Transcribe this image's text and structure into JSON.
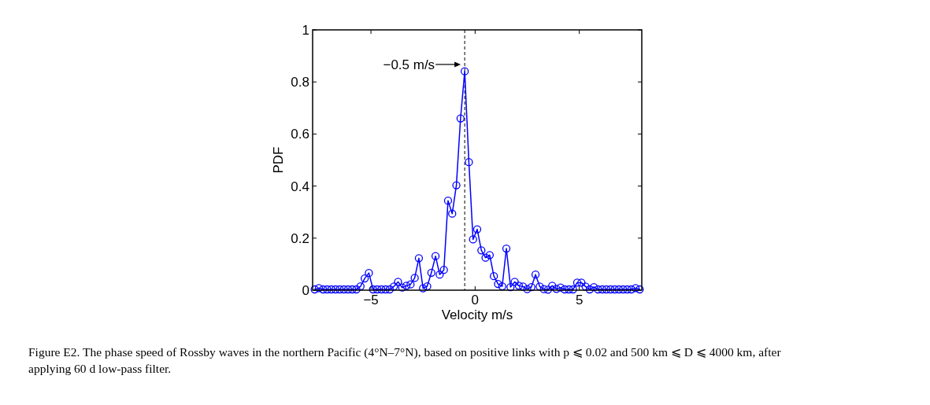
{
  "chart_data": {
    "type": "line",
    "xlabel": "Velocity m/s",
    "ylabel": "PDF",
    "x": [
      -7.7,
      -7.5,
      -7.3,
      -7.1,
      -6.9,
      -6.7,
      -6.5,
      -6.3,
      -6.1,
      -5.9,
      -5.7,
      -5.5,
      -5.3,
      -5.1,
      -4.9,
      -4.7,
      -4.5,
      -4.3,
      -4.1,
      -3.9,
      -3.7,
      -3.5,
      -3.3,
      -3.1,
      -2.9,
      -2.7,
      -2.5,
      -2.3,
      -2.1,
      -1.9,
      -1.7,
      -1.5,
      -1.3,
      -1.1,
      -0.9,
      -0.7,
      -0.5,
      -0.3,
      -0.1,
      0.1,
      0.3,
      0.5,
      0.7,
      0.9,
      1.1,
      1.3,
      1.5,
      1.7,
      1.9,
      2.1,
      2.3,
      2.5,
      2.7,
      2.9,
      3.1,
      3.3,
      3.5,
      3.7,
      3.9,
      4.1,
      4.3,
      4.5,
      4.7,
      4.9,
      5.1,
      5.3,
      5.5,
      5.7,
      5.9,
      6.1,
      6.3,
      6.5,
      6.7,
      6.9,
      7.1,
      7.3,
      7.5,
      7.7,
      7.9
    ],
    "series": [
      {
        "color": "#0000ff",
        "values": [
          0.003,
          0.008,
          0.003,
          0.003,
          0.003,
          0.003,
          0.003,
          0.003,
          0.003,
          0.003,
          0.003,
          0.015,
          0.045,
          0.066,
          0.003,
          0.003,
          0.003,
          0.003,
          0.003,
          0.014,
          0.032,
          0.01,
          0.017,
          0.022,
          0.047,
          0.123,
          0.007,
          0.015,
          0.067,
          0.131,
          0.06,
          0.078,
          0.344,
          0.294,
          0.403,
          0.66,
          0.841,
          0.492,
          0.195,
          0.234,
          0.153,
          0.125,
          0.135,
          0.054,
          0.024,
          0.015,
          0.16,
          0.012,
          0.032,
          0.017,
          0.014,
          0.004,
          0.012,
          0.06,
          0.014,
          0.004,
          0.002,
          0.017,
          0.005,
          0.01,
          0.003,
          0.003,
          0.003,
          0.029,
          0.029,
          0.014,
          0.003,
          0.012,
          0.003,
          0.003,
          0.003,
          0.003,
          0.003,
          0.003,
          0.003,
          0.003,
          0.003,
          0.008,
          0.003
        ]
      }
    ],
    "xlim": [
      -7.8,
      8
    ],
    "ylim": [
      0,
      1
    ],
    "xticks": [
      -5,
      0,
      5
    ],
    "yticks": [
      0,
      0.2,
      0.4,
      0.6,
      0.8,
      1
    ],
    "marker": "circle",
    "line_style": "solid",
    "ref_lines": [
      {
        "axis": "x",
        "value": -0.5,
        "color": "#000000",
        "line_style": "dashed"
      }
    ],
    "annotations": [
      {
        "text": "−0.5 m/s",
        "x": -0.5,
        "y": 0.84
      },
      "Figure E2. The phase speed of Rossby waves in the northern Pacific (4°N–7°N), based on positive links with p ⩽ 0.02 and 500 km ⩽ D ⩽ 4000 km, after applying 60 d low-pass filter."
    ]
  }
}
